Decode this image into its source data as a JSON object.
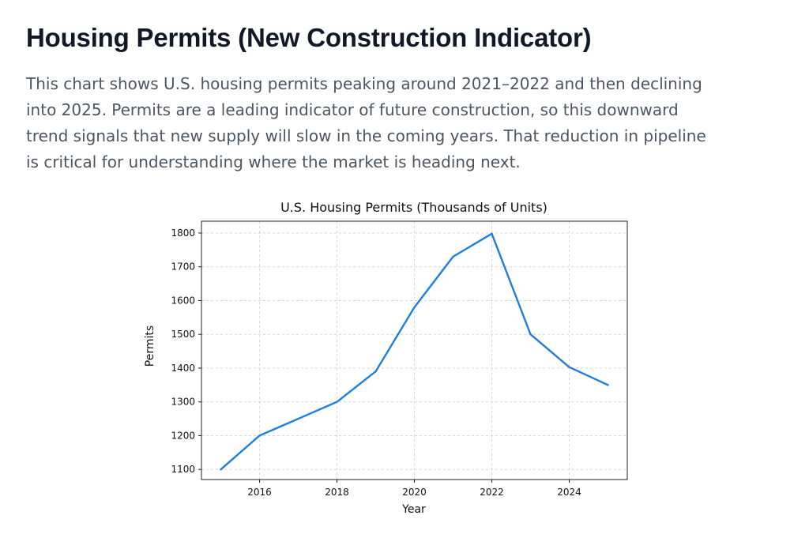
{
  "page": {
    "title": "Housing Permits (New Construction Indicator)",
    "description": "This chart shows U.S. housing permits peaking around 2021–2022 and then declining into 2025. Permits are a leading indicator of future construction, so this downward trend signals that new supply will slow in the coming years. That reduction in pipeline is critical for understanding where the market is heading next."
  },
  "chart_data": {
    "type": "line",
    "title": "U.S. Housing Permits (Thousands of Units)",
    "xlabel": "Year",
    "ylabel": "Permits",
    "x": [
      2015,
      2016,
      2017,
      2018,
      2019,
      2020,
      2021,
      2022,
      2023,
      2024,
      2025
    ],
    "series": [
      {
        "values": [
          1100,
          1200,
          1250,
          1300,
          1390,
          1580,
          1730,
          1798,
          1500,
          1403,
          1350
        ],
        "color": "#1f7fe0"
      }
    ],
    "xlim": [
      2014.5,
      2025.5
    ],
    "ylim": [
      1070,
      1835
    ],
    "xticks": [
      2016,
      2018,
      2020,
      2022,
      2024
    ],
    "yticks": [
      1100,
      1200,
      1300,
      1400,
      1500,
      1600,
      1700,
      1800
    ],
    "grid": true
  }
}
